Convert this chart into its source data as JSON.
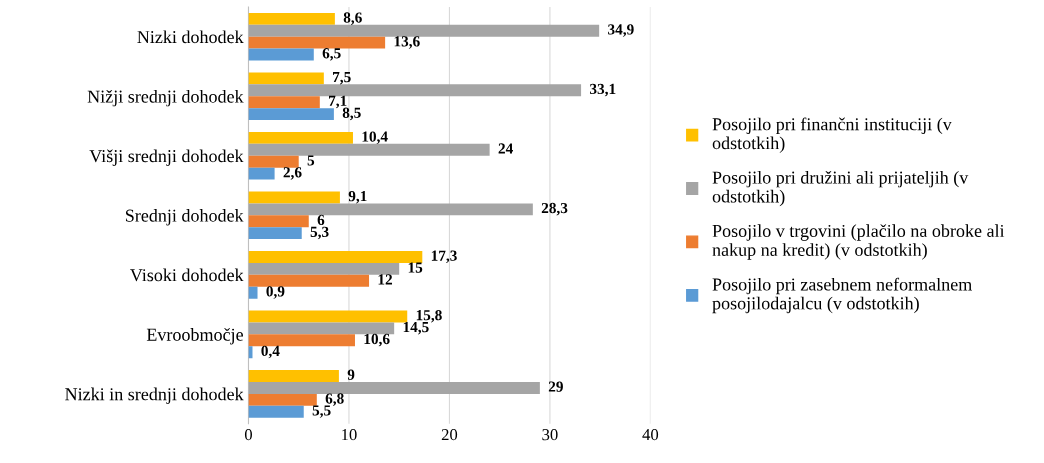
{
  "chart_data": {
    "type": "bar",
    "orientation": "horizontal",
    "categories": [
      "Nizki dohodek",
      "Nižji srednji dohodek",
      "Višji srednji dohodek",
      "Srednji dohodek",
      "Visoki dohodek",
      "Evroobmočje",
      "Nizki in srednji dohodek"
    ],
    "series": [
      {
        "name": "Posojilo pri finančni instituciji (v odstotkih)",
        "color": "#ffc000",
        "values": [
          8.6,
          7.5,
          10.4,
          9.1,
          17.3,
          15.8,
          9
        ],
        "value_labels": [
          "8,6",
          "7,5",
          "10,4",
          "9,1",
          "17,3",
          "15,8",
          "9"
        ]
      },
      {
        "name": "Posojilo pri družini ali prijateljih (v odstotkih)",
        "color": "#a5a5a5",
        "values": [
          34.9,
          33.1,
          24,
          28.3,
          15,
          14.5,
          29
        ],
        "value_labels": [
          "34,9",
          "33,1",
          "24",
          "28,3",
          "15",
          "14,5",
          "29"
        ]
      },
      {
        "name": "Posojilo v trgovini (plačilo na obroke ali nakup na kredit) (v odstotkih)",
        "color": "#ed7d31",
        "values": [
          13.6,
          7.1,
          5,
          6,
          12,
          10.6,
          6.8
        ],
        "value_labels": [
          "13,6",
          "7,1",
          "5",
          "6",
          "12",
          "10,6",
          "6,8"
        ]
      },
      {
        "name": "Posojilo pri zasebnem neformalnem posojilodajalcu (v odstotkih)",
        "color": "#5b9bd5",
        "values": [
          6.5,
          8.5,
          2.6,
          5.3,
          0.9,
          0.4,
          5.5
        ],
        "value_labels": [
          "6,5",
          "8,5",
          "2,6",
          "5,3",
          "0,9",
          "0,4",
          "5,5"
        ]
      }
    ],
    "xlim": [
      0,
      40
    ],
    "xticks": [
      0,
      10,
      20,
      30,
      40
    ],
    "grid": "x",
    "legend": "right"
  }
}
